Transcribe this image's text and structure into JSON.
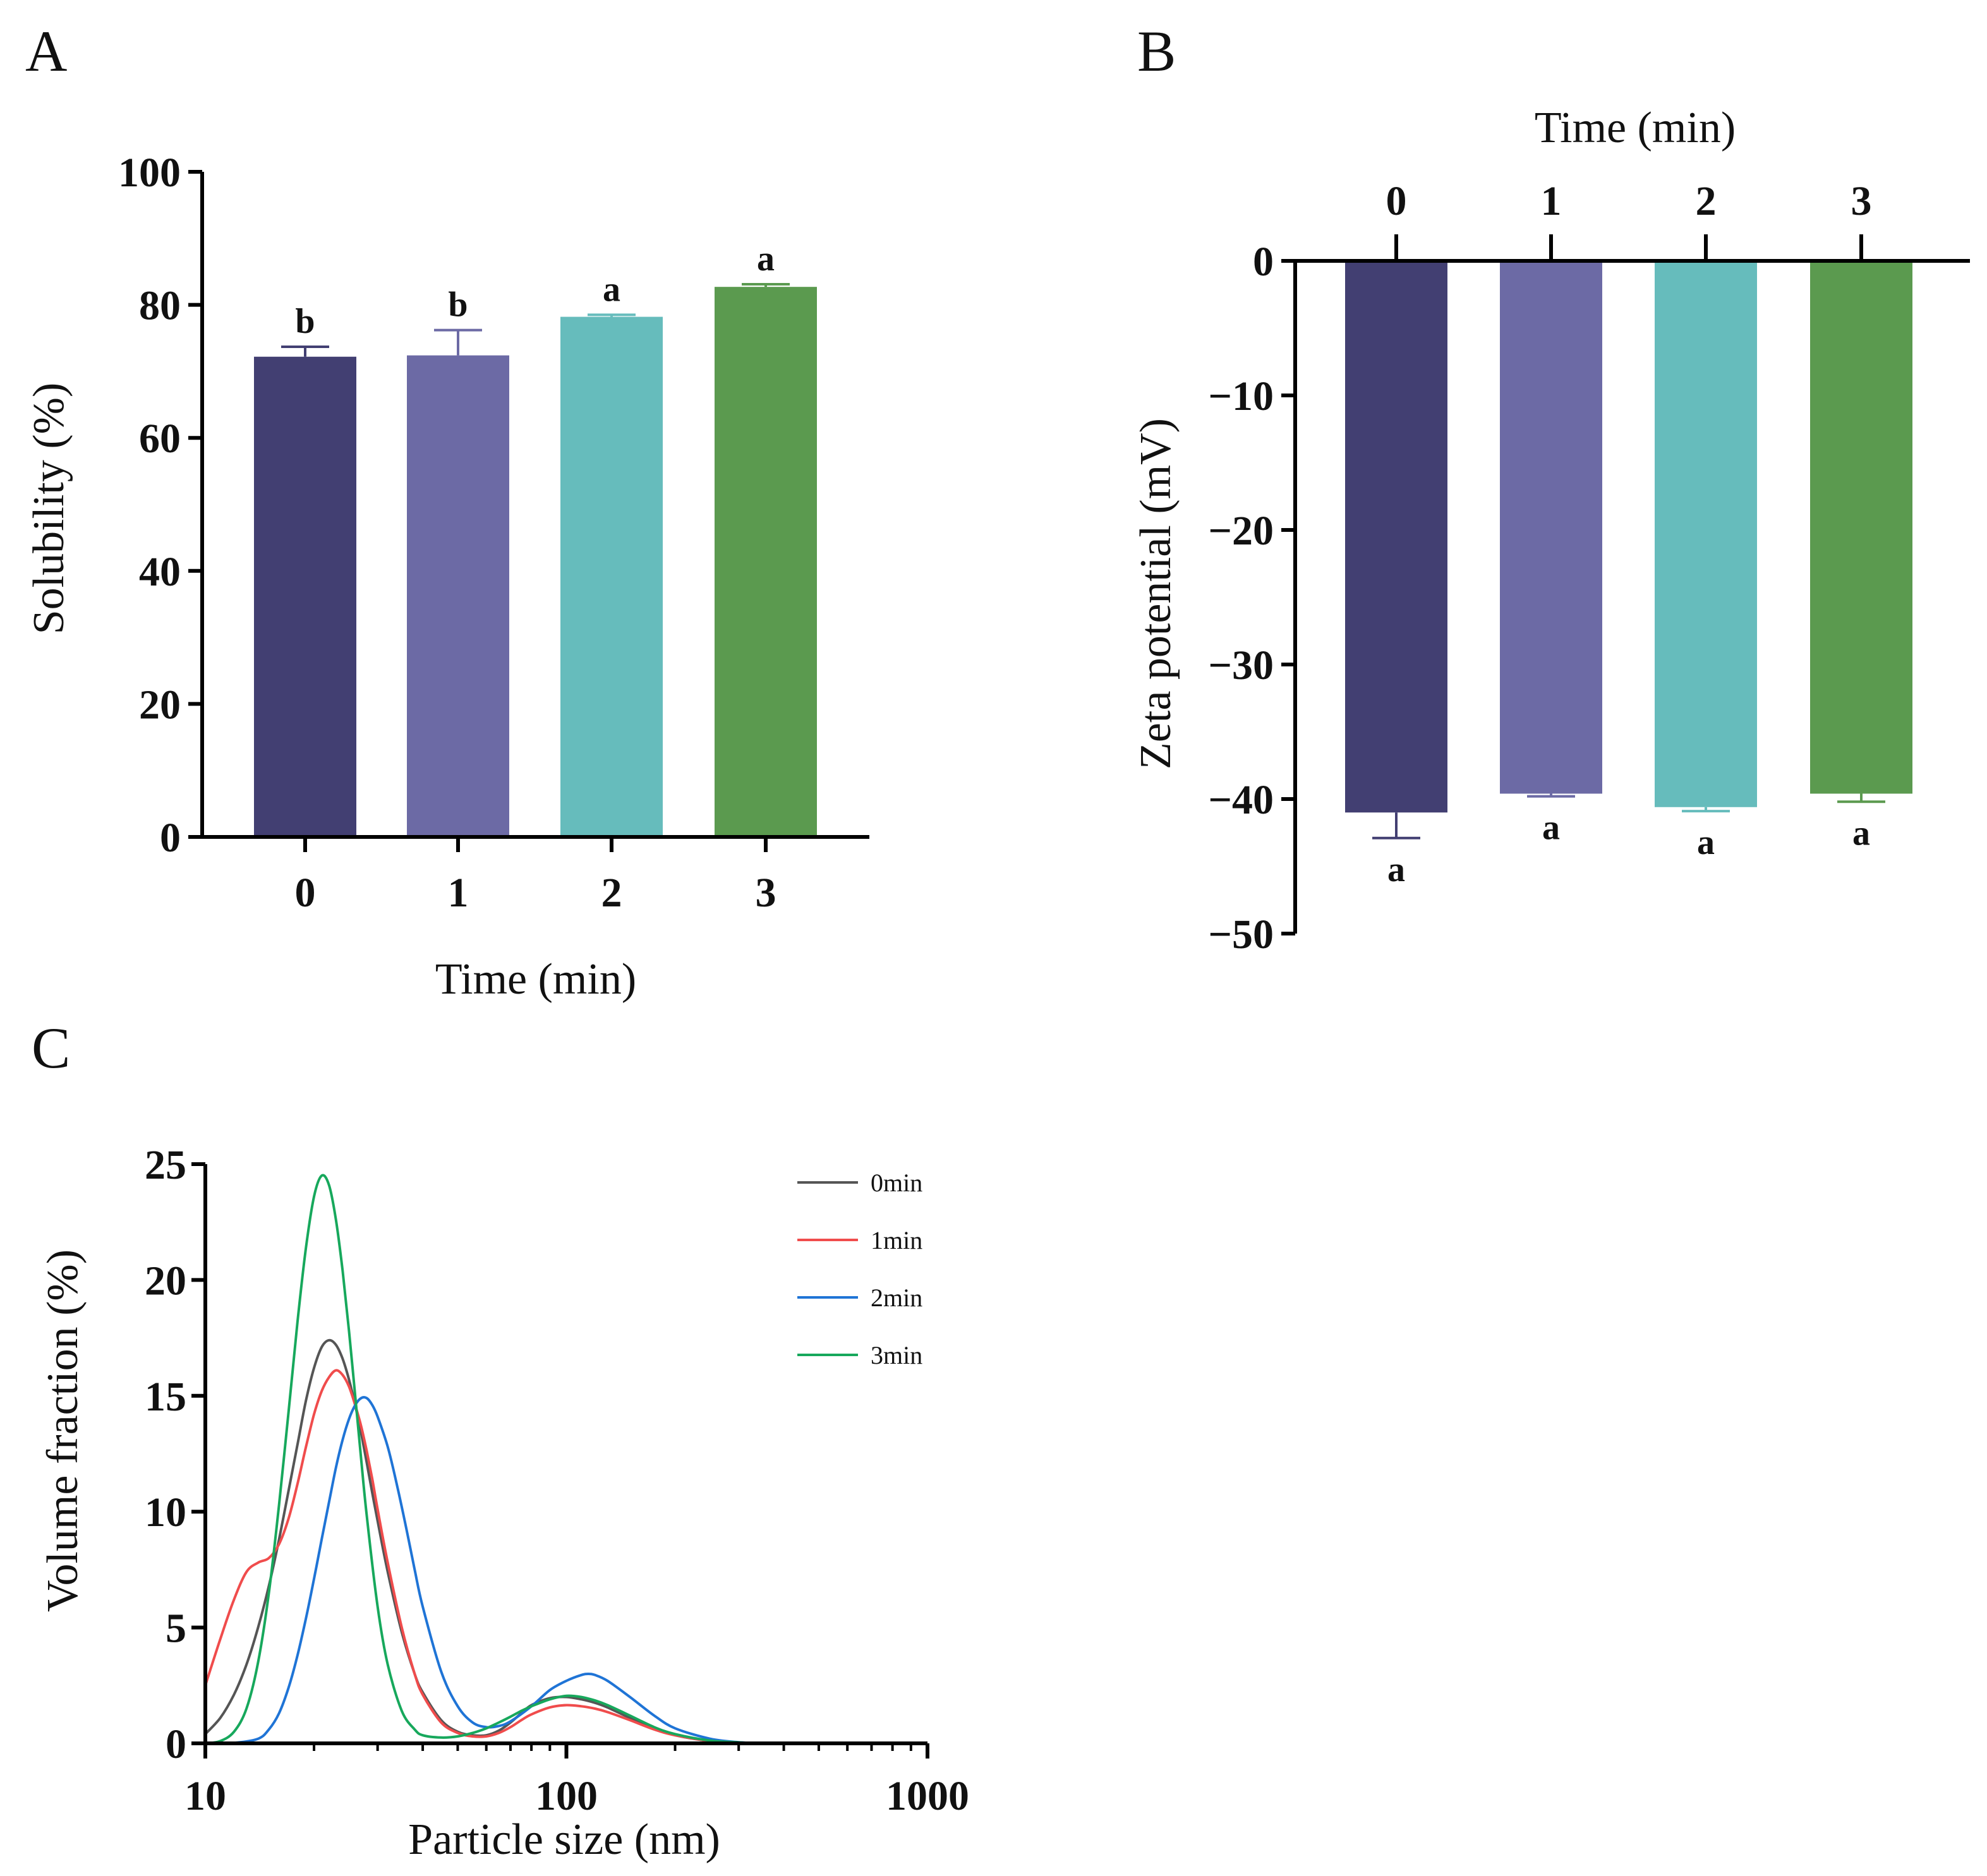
{
  "chart_data": [
    {
      "panel": "A",
      "type": "bar",
      "categories": [
        "0",
        "1",
        "2",
        "3"
      ],
      "values": [
        72.2,
        72.4,
        78.2,
        82.7
      ],
      "errors": [
        1.5,
        3.8,
        0.3,
        0.4
      ],
      "significance": [
        "b",
        "b",
        "a",
        "a"
      ],
      "colors": [
        "#423f72",
        "#6c6aa5",
        "#66bcbc",
        "#5b9a4f"
      ],
      "xlabel": "Time (min)",
      "ylabel": "Solubility (%)",
      "ylim": [
        0,
        100
      ],
      "yticks": [
        0,
        20,
        40,
        60,
        80,
        100
      ]
    },
    {
      "panel": "B",
      "type": "bar",
      "categories": [
        "0",
        "1",
        "2",
        "3"
      ],
      "values": [
        -41.0,
        -39.6,
        -40.6,
        -39.6
      ],
      "errors": [
        1.9,
        0.2,
        0.3,
        0.6
      ],
      "significance": [
        "a",
        "a",
        "a",
        "a"
      ],
      "colors": [
        "#423f72",
        "#6c6aa5",
        "#66bcbc",
        "#5b9a4f"
      ],
      "xlabel": "Time (min)",
      "ylabel": "Zeta potential (mV)",
      "ylim": [
        -50,
        0
      ],
      "yticks": [
        0,
        -10,
        -20,
        -30,
        -40,
        -50
      ],
      "ytick_labels": [
        "0",
        "−10",
        "−20",
        "−30",
        "−40",
        "−50"
      ]
    },
    {
      "panel": "C",
      "type": "line",
      "xscale": "log",
      "xlabel": "Particle size (nm)",
      "ylabel": "Volume fraction (%)",
      "xlim": [
        10,
        1000
      ],
      "ylim": [
        0,
        25
      ],
      "xticks": [
        10,
        100,
        1000
      ],
      "xtick_labels": [
        "10",
        "100",
        "1000"
      ],
      "yticks": [
        0,
        5,
        10,
        15,
        20,
        25
      ],
      "legend_position": "top-right",
      "series": [
        {
          "name": "0min",
          "color": "#555555",
          "x": [
            10,
            11,
            12,
            13,
            14,
            15,
            16,
            17,
            18,
            19,
            20,
            21,
            22,
            23,
            24,
            25,
            26,
            27,
            28,
            29,
            30,
            32,
            35,
            38,
            40,
            45,
            50,
            55,
            60,
            65,
            70,
            75,
            80,
            90,
            100,
            110,
            120,
            130,
            150,
            175,
            200,
            250,
            300,
            350
          ],
          "y": [
            0.4,
            1.1,
            2.1,
            3.4,
            5.0,
            6.8,
            8.8,
            10.9,
            12.9,
            14.8,
            16.2,
            17.1,
            17.4,
            17.2,
            16.6,
            15.7,
            14.6,
            13.4,
            12.1,
            10.8,
            9.6,
            7.4,
            4.8,
            3.0,
            2.2,
            1.0,
            0.5,
            0.35,
            0.35,
            0.55,
            0.9,
            1.3,
            1.65,
            1.95,
            2.0,
            1.9,
            1.75,
            1.55,
            1.1,
            0.65,
            0.35,
            0.1,
            0.03,
            0.0
          ]
        },
        {
          "name": "1min",
          "color": "#f04c4c",
          "x": [
            10,
            11,
            12,
            13,
            14,
            15,
            16,
            17,
            18,
            19,
            20,
            21,
            22,
            23,
            24,
            25,
            26,
            27,
            28,
            29,
            30,
            32,
            35,
            38,
            40,
            45,
            50,
            55,
            60,
            65,
            70,
            75,
            80,
            90,
            100,
            110,
            120,
            130,
            150,
            175,
            200,
            250,
            300,
            350
          ],
          "y": [
            2.5,
            4.5,
            6.2,
            7.4,
            7.8,
            8.0,
            8.6,
            9.7,
            11.2,
            12.8,
            14.2,
            15.2,
            15.8,
            16.1,
            15.9,
            15.4,
            14.6,
            13.7,
            12.6,
            11.4,
            10.1,
            7.8,
            5.0,
            3.0,
            2.1,
            0.9,
            0.45,
            0.3,
            0.3,
            0.45,
            0.7,
            1.0,
            1.25,
            1.55,
            1.65,
            1.6,
            1.5,
            1.35,
            1.0,
            0.6,
            0.35,
            0.1,
            0.03,
            0.0
          ]
        },
        {
          "name": "2min",
          "color": "#1f74d6",
          "x": [
            10,
            12,
            14,
            15,
            16,
            17,
            18,
            19,
            20,
            21,
            22,
            23,
            24,
            25,
            26,
            27,
            28,
            29,
            30,
            32,
            34,
            36,
            38,
            40,
            45,
            50,
            55,
            60,
            65,
            70,
            80,
            90,
            100,
            110,
            115,
            120,
            130,
            150,
            175,
            200,
            250,
            300,
            350
          ],
          "y": [
            0.0,
            0.02,
            0.2,
            0.6,
            1.3,
            2.4,
            3.8,
            5.4,
            7.1,
            8.8,
            10.4,
            11.9,
            13.1,
            14.0,
            14.6,
            14.9,
            14.9,
            14.6,
            14.1,
            12.8,
            11.1,
            9.3,
            7.5,
            5.9,
            3.1,
            1.6,
            0.9,
            0.7,
            0.75,
            0.95,
            1.6,
            2.3,
            2.7,
            2.95,
            3.0,
            2.95,
            2.7,
            2.0,
            1.2,
            0.65,
            0.2,
            0.05,
            0.0
          ]
        },
        {
          "name": "3min",
          "color": "#17a85c",
          "x": [
            10,
            11,
            12,
            13,
            14,
            15,
            16,
            17,
            18,
            19,
            20,
            21,
            22,
            23,
            24,
            25,
            26,
            27,
            28,
            30,
            32,
            35,
            38,
            40,
            45,
            50,
            55,
            60,
            65,
            70,
            75,
            80,
            90,
            100,
            110,
            120,
            130,
            150,
            175,
            200,
            250,
            300,
            350
          ],
          "y": [
            0.0,
            0.1,
            0.5,
            1.5,
            3.5,
            6.5,
            10.3,
            14.3,
            18.2,
            21.4,
            23.6,
            24.5,
            24.1,
            22.6,
            20.4,
            17.8,
            15.0,
            12.3,
            9.8,
            5.9,
            3.4,
            1.4,
            0.6,
            0.35,
            0.25,
            0.3,
            0.45,
            0.65,
            0.9,
            1.15,
            1.4,
            1.6,
            1.9,
            2.05,
            2.0,
            1.85,
            1.65,
            1.2,
            0.7,
            0.4,
            0.12,
            0.04,
            0.0
          ]
        }
      ]
    }
  ],
  "panel_labels": {
    "a": "A",
    "b": "B",
    "c": "C"
  }
}
